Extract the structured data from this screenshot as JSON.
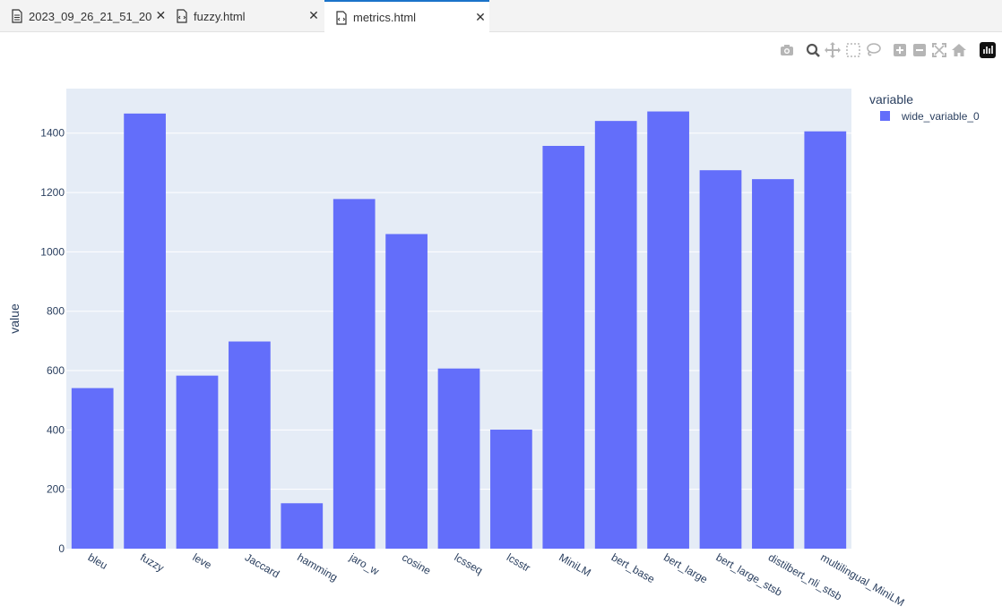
{
  "tabs": [
    {
      "label": "2023_09_26_21_51_20",
      "icon": "document-icon"
    },
    {
      "label": "fuzzy.html",
      "icon": "html-file-icon"
    },
    {
      "label": "metrics.html",
      "icon": "html-file-icon",
      "active": true
    }
  ],
  "tab_close_glyph": "✕",
  "modebar": [
    "camera-icon",
    "zoom-icon",
    "pan-icon",
    "box-select-icon",
    "lasso-select-icon",
    "zoom-in-icon",
    "zoom-out-icon",
    "autoscale-icon",
    "reset-axes-icon",
    "plotly-logo-icon"
  ],
  "colors": {
    "bar": "#636efa",
    "plot_bg": "#e5ecf6",
    "grid": "#ffffff",
    "text": "#2a3f5f"
  },
  "chart_data": {
    "type": "bar",
    "categories": [
      "bleu",
      "fuzzy",
      "leve",
      "Jaccard",
      "hamming",
      "jaro_w",
      "cosine",
      "lcsseq",
      "lcsstr",
      "MiniLM",
      "bert_base",
      "bert_large",
      "bert_large_stsb",
      "distilbert_nli_stsb",
      "multilingual_MiniLM"
    ],
    "series": [
      {
        "name": "wide_variable_0",
        "values": [
          541,
          1466,
          583,
          698,
          153,
          1178,
          1060,
          607,
          401,
          1357,
          1441,
          1473,
          1275,
          1245,
          1406
        ]
      }
    ],
    "xlabel": "",
    "ylabel": "value",
    "ylim": [
      0,
      1550
    ],
    "yticks": [
      0,
      200,
      400,
      600,
      800,
      1000,
      1200,
      1400
    ],
    "legend_title": "variable",
    "legend_position": "top-right",
    "grid": true
  }
}
